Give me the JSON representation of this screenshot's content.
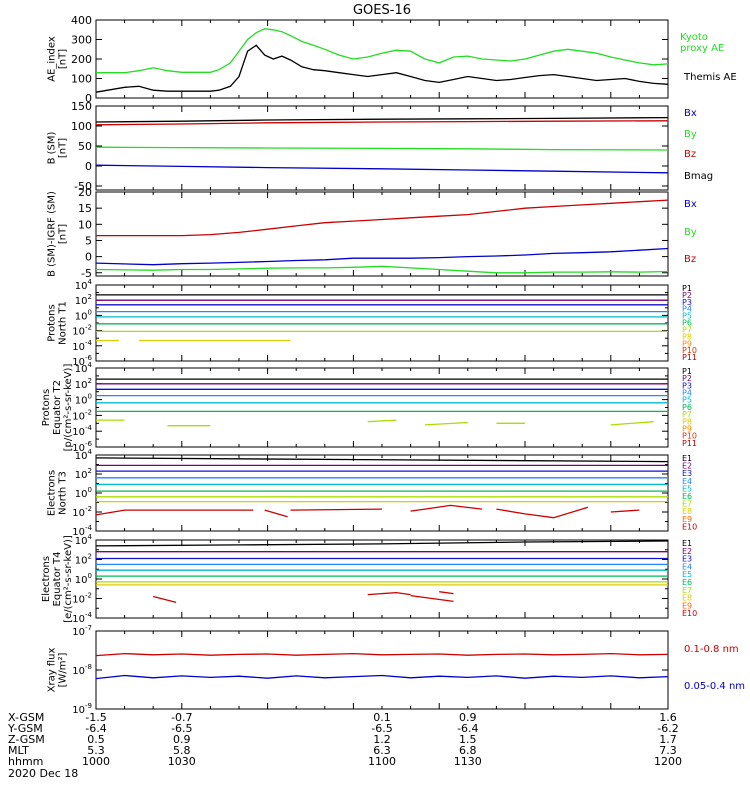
{
  "title": "GOES-16",
  "colors": {
    "black": "#000000",
    "green": "#22dd22",
    "red": "#cc0000",
    "blue": "#0000cc",
    "p1": "#000000",
    "p2": "#7a007a",
    "p3": "#1010cc",
    "p4": "#2288ff",
    "p5": "#00bbcc",
    "p6": "#00bb55",
    "p7": "#aadd00",
    "p8": "#ddcc00",
    "p9": "#ff8800",
    "p10": "#dd3300",
    "p11": "#bb0000",
    "e1": "#000000",
    "e2": "#7a007a",
    "e3": "#1010cc",
    "e4": "#2288ff",
    "e5": "#00bbcc",
    "e6": "#00bb55",
    "e7": "#aadd00",
    "e8": "#ddcc00",
    "e9": "#ff6600",
    "e10": "#cc0000"
  },
  "chart_data": [
    {
      "type": "line",
      "ylabel": [
        "AE_index",
        "[nT]"
      ],
      "ylim": [
        0,
        400
      ],
      "yticks": [
        0,
        100,
        200,
        300,
        400
      ],
      "yscale": "linear",
      "x": [
        1000,
        1010,
        1015,
        1020,
        1025,
        1030,
        1038,
        1040,
        1043,
        1047,
        1050,
        1053,
        1056,
        1059,
        1062,
        1065,
        1068,
        1072,
        1076,
        1080,
        1085,
        1090,
        1095,
        1100,
        1105,
        1110,
        1115,
        1120,
        1125,
        1130,
        1135,
        1140,
        1145,
        1150,
        1155,
        1160,
        1165,
        1170,
        1175,
        1180,
        1185,
        1190,
        1195,
        1200
      ],
      "series": [
        {
          "name": "Kyoto proxy AE",
          "color": "green",
          "values": [
            130,
            130,
            140,
            155,
            140,
            132,
            132,
            132,
            145,
            180,
            240,
            300,
            335,
            355,
            350,
            340,
            320,
            290,
            270,
            250,
            220,
            200,
            210,
            230,
            245,
            240,
            200,
            180,
            210,
            215,
            200,
            195,
            190,
            200,
            220,
            240,
            250,
            240,
            230,
            210,
            195,
            180,
            170,
            175
          ]
        },
        {
          "name": "Themis AE",
          "color": "black",
          "values": [
            30,
            55,
            60,
            40,
            35,
            35,
            35,
            35,
            40,
            60,
            110,
            240,
            270,
            220,
            200,
            215,
            195,
            160,
            145,
            140,
            130,
            120,
            110,
            120,
            130,
            110,
            90,
            80,
            95,
            110,
            100,
            90,
            95,
            105,
            115,
            120,
            110,
            100,
            90,
            95,
            100,
            85,
            75,
            70
          ]
        }
      ]
    },
    {
      "type": "line",
      "ylabel": [
        "B (SM)",
        "[nT]"
      ],
      "ylim": [
        -60,
        150
      ],
      "yticks": [
        -50,
        0,
        50,
        100,
        150
      ],
      "yscale": "linear",
      "x": [
        1000,
        1030,
        1060,
        1100,
        1130,
        1160,
        1200
      ],
      "series": [
        {
          "name": "Bmag",
          "color": "black",
          "values": [
            110,
            112,
            115,
            117,
            118,
            119,
            121
          ]
        },
        {
          "name": "Bz",
          "color": "red",
          "values": [
            103,
            105,
            108,
            110,
            111,
            112,
            113
          ]
        },
        {
          "name": "By",
          "color": "green",
          "values": [
            47,
            46,
            45,
            44,
            43,
            41,
            40
          ]
        },
        {
          "name": "Bx",
          "color": "blue",
          "values": [
            2,
            -1,
            -4,
            -7,
            -10,
            -13,
            -17
          ]
        }
      ]
    },
    {
      "type": "line",
      "ylabel": [
        "B (SM)-IGRF (SM)",
        "[nT]"
      ],
      "ylim": [
        -6,
        20
      ],
      "yticks": [
        -5,
        0,
        5,
        10,
        15,
        20
      ],
      "yscale": "linear",
      "x": [
        1000,
        1020,
        1030,
        1040,
        1050,
        1060,
        1070,
        1080,
        1090,
        1100,
        1110,
        1120,
        1130,
        1140,
        1150,
        1160,
        1170,
        1180,
        1190,
        1200
      ],
      "series": [
        {
          "name": "Bz",
          "color": "red",
          "values": [
            6.5,
            6.5,
            6.5,
            6.8,
            7.5,
            8.5,
            9.5,
            10.5,
            11.0,
            11.5,
            12.0,
            12.5,
            13.0,
            14.0,
            15.0,
            15.5,
            16.0,
            16.5,
            17.0,
            17.5
          ]
        },
        {
          "name": "Bx",
          "color": "blue",
          "values": [
            -2.0,
            -2.5,
            -2.2,
            -2.0,
            -1.8,
            -1.5,
            -1.2,
            -1.0,
            -0.5,
            -0.5,
            -0.5,
            -0.3,
            0.0,
            0.2,
            0.5,
            1.0,
            1.2,
            1.5,
            2.0,
            2.5
          ]
        },
        {
          "name": "By",
          "color": "green",
          "values": [
            -4.0,
            -4.2,
            -4.0,
            -4.0,
            -3.8,
            -3.6,
            -3.5,
            -3.5,
            -3.3,
            -3.0,
            -3.5,
            -4.0,
            -4.5,
            -5.0,
            -5.0,
            -4.8,
            -4.8,
            -4.7,
            -4.8,
            -4.6
          ]
        }
      ]
    },
    {
      "type": "line",
      "ylabel": [
        "Protons",
        "North T1"
      ],
      "ylim": [
        -6,
        4
      ],
      "yscale": "log10",
      "ytick_exponents": [
        -6,
        -4,
        -2,
        0,
        2,
        4
      ],
      "legend": [
        "P1",
        "P2",
        "P3",
        "P4",
        "P5",
        "P6",
        "P7",
        "P8",
        "P9",
        "P10",
        "P11"
      ],
      "x": [
        1000,
        1200
      ],
      "series": [
        {
          "name": "P1",
          "color": "p1",
          "values": [
            2.7,
            2.7
          ]
        },
        {
          "name": "P2",
          "color": "p2",
          "values": [
            2.0,
            2.0
          ]
        },
        {
          "name": "P3",
          "color": "p3",
          "values": [
            1.4,
            1.4
          ]
        },
        {
          "name": "P4",
          "color": "p4",
          "values": [
            0.5,
            0.5
          ]
        },
        {
          "name": "P5",
          "color": "p5",
          "values": [
            -0.2,
            -0.2
          ]
        },
        {
          "name": "P6",
          "color": "p6",
          "values": [
            -1.1,
            -1.1
          ]
        },
        {
          "name": "P7",
          "color": "p7",
          "values": [
            -2.1,
            -2.1
          ]
        }
      ],
      "segments": [
        {
          "color": "p8",
          "x": [
            1000,
            1008
          ],
          "values": [
            -3.3,
            -3.3
          ]
        },
        {
          "color": "p8",
          "x": [
            1015,
            1068
          ],
          "values": [
            -3.3,
            -3.3
          ]
        }
      ]
    },
    {
      "type": "line",
      "ylabel": [
        "Protons",
        "Equator T2",
        "[p/(cm²-s-sr-keV)]"
      ],
      "ylim": [
        -6,
        4
      ],
      "yscale": "log10",
      "ytick_exponents": [
        -6,
        -4,
        -2,
        0,
        2,
        4
      ],
      "legend": [
        "P1",
        "P2",
        "P3",
        "P4",
        "P5",
        "P6",
        "P7",
        "P8",
        "P9",
        "P10",
        "P11"
      ],
      "x": [
        1000,
        1200
      ],
      "series": [
        {
          "name": "P1",
          "color": "p1",
          "values": [
            2.6,
            2.6
          ]
        },
        {
          "name": "P2",
          "color": "p2",
          "values": [
            2.0,
            2.0
          ]
        },
        {
          "name": "P3",
          "color": "p3",
          "values": [
            1.3,
            1.3
          ]
        },
        {
          "name": "P4",
          "color": "p4",
          "values": [
            0.5,
            0.5
          ]
        },
        {
          "name": "P5",
          "color": "p5",
          "values": [
            -0.4,
            -0.4
          ]
        },
        {
          "name": "P6",
          "color": "p6",
          "values": [
            -1.5,
            -1.5
          ]
        }
      ],
      "segments": [
        {
          "color": "p7",
          "x": [
            1000,
            1010
          ],
          "values": [
            -2.6,
            -2.6
          ]
        },
        {
          "color": "p7",
          "x": [
            1025,
            1040
          ],
          "values": [
            -3.3,
            -3.3
          ]
        },
        {
          "color": "p7",
          "x": [
            1095,
            1105
          ],
          "values": [
            -2.8,
            -2.6
          ]
        },
        {
          "color": "p7",
          "x": [
            1115,
            1130
          ],
          "values": [
            -3.2,
            -2.9
          ]
        },
        {
          "color": "p7",
          "x": [
            1140,
            1150
          ],
          "values": [
            -3.0,
            -3.0
          ]
        },
        {
          "color": "p7",
          "x": [
            1180,
            1195
          ],
          "values": [
            -3.2,
            -2.8
          ]
        }
      ]
    },
    {
      "type": "line",
      "ylabel": [
        "Electrons",
        "North T3"
      ],
      "ylim": [
        -4,
        4
      ],
      "yscale": "log10",
      "ytick_exponents": [
        -4,
        -2,
        0,
        2,
        4
      ],
      "legend": [
        "E1",
        "E2",
        "E3",
        "E4",
        "E5",
        "E6",
        "E7",
        "E8",
        "E9",
        "E10"
      ],
      "x": [
        1000,
        1200
      ],
      "series": [
        {
          "name": "E1",
          "color": "e1",
          "values": [
            3.7,
            3.3
          ]
        },
        {
          "name": "E2",
          "color": "e2",
          "values": [
            2.9,
            2.9
          ]
        },
        {
          "name": "E3",
          "color": "e3",
          "values": [
            2.3,
            2.3
          ]
        },
        {
          "name": "E4",
          "color": "e4",
          "values": [
            1.6,
            1.6
          ]
        },
        {
          "name": "E5",
          "color": "e5",
          "values": [
            0.9,
            0.9
          ]
        },
        {
          "name": "E6",
          "color": "e6",
          "values": [
            0.2,
            0.2
          ]
        },
        {
          "name": "E7",
          "color": "e7",
          "values": [
            -0.4,
            -0.4
          ]
        },
        {
          "name": "E8",
          "color": "e8",
          "values": [
            -0.9,
            -0.9
          ]
        }
      ],
      "segments": [
        {
          "color": "e10",
          "x": [
            1000,
            1010,
            1030,
            1055
          ],
          "values": [
            -2.3,
            -1.8,
            -1.8,
            -1.8
          ]
        },
        {
          "color": "e10",
          "x": [
            1059,
            1067
          ],
          "values": [
            -1.8,
            -2.5
          ]
        },
        {
          "color": "e10",
          "x": [
            1068,
            1100
          ],
          "values": [
            -1.8,
            -1.7
          ]
        },
        {
          "color": "e10",
          "x": [
            1110,
            1115,
            1124,
            1135
          ],
          "values": [
            -1.9,
            -1.7,
            -1.3,
            -1.7
          ]
        },
        {
          "color": "e10",
          "x": [
            1140,
            1150,
            1160,
            1172
          ],
          "values": [
            -1.7,
            -2.2,
            -2.6,
            -1.5
          ]
        },
        {
          "color": "e10",
          "x": [
            1180,
            1190
          ],
          "values": [
            -2.0,
            -1.8
          ]
        }
      ]
    },
    {
      "type": "line",
      "ylabel": [
        "Electrons",
        "Equator T4",
        "[e/(cm²-s-sr-keV)]"
      ],
      "ylim": [
        -4,
        4
      ],
      "yscale": "log10",
      "ytick_exponents": [
        -4,
        -2,
        0,
        2,
        4
      ],
      "legend": [
        "E1",
        "E2",
        "E3",
        "E4",
        "E5",
        "E6",
        "E7",
        "E8",
        "E9",
        "E10"
      ],
      "x": [
        1000,
        1050,
        1100,
        1150,
        1200
      ],
      "series": [
        {
          "name": "E1",
          "color": "e1",
          "values": [
            3.4,
            3.5,
            3.6,
            3.8,
            3.9
          ]
        },
        {
          "name": "E2",
          "color": "e2",
          "values": [
            2.8,
            2.8,
            2.8,
            2.8,
            2.8
          ]
        },
        {
          "name": "E3",
          "color": "e3",
          "values": [
            2.1,
            2.1,
            2.1,
            2.1,
            2.1
          ]
        },
        {
          "name": "E4",
          "color": "e4",
          "values": [
            1.5,
            1.5,
            1.5,
            1.5,
            1.5
          ]
        },
        {
          "name": "E5",
          "color": "e5",
          "values": [
            0.9,
            0.9,
            0.9,
            0.9,
            0.9
          ]
        },
        {
          "name": "E6",
          "color": "e6",
          "values": [
            0.3,
            0.3,
            0.3,
            0.3,
            0.3
          ]
        },
        {
          "name": "E7",
          "color": "e7",
          "values": [
            -0.3,
            -0.3,
            -0.3,
            -0.3,
            -0.3
          ]
        },
        {
          "name": "E8",
          "color": "e8",
          "values": [
            -0.6,
            -0.6,
            -0.6,
            -0.6,
            -0.6
          ]
        }
      ],
      "segments": [
        {
          "color": "e10",
          "x": [
            1020,
            1028
          ],
          "values": [
            -1.8,
            -2.4
          ]
        },
        {
          "color": "e10",
          "x": [
            1095,
            1105,
            1110
          ],
          "values": [
            -1.6,
            -1.4,
            -1.6
          ]
        },
        {
          "color": "e10",
          "x": [
            1110,
            1125
          ],
          "values": [
            -1.7,
            -2.3
          ]
        },
        {
          "color": "e10",
          "x": [
            1120,
            1125
          ],
          "values": [
            -1.3,
            -1.5
          ]
        }
      ]
    },
    {
      "type": "line",
      "ylabel": [
        "Xray flux",
        "[W/m²]"
      ],
      "ylim": [
        -9,
        -7
      ],
      "yscale": "log10",
      "ytick_exponents": [
        -9,
        -8,
        -7
      ],
      "x": [
        1000,
        1010,
        1020,
        1030,
        1040,
        1050,
        1060,
        1070,
        1080,
        1090,
        1100,
        1110,
        1120,
        1130,
        1140,
        1150,
        1160,
        1170,
        1180,
        1190,
        1200
      ],
      "series": [
        {
          "name": "0.1-0.8 nm",
          "color": "red",
          "values": [
            -7.63,
            -7.58,
            -7.61,
            -7.59,
            -7.62,
            -7.6,
            -7.59,
            -7.62,
            -7.6,
            -7.58,
            -7.61,
            -7.6,
            -7.59,
            -7.62,
            -7.6,
            -7.59,
            -7.61,
            -7.6,
            -7.58,
            -7.61,
            -7.6
          ]
        },
        {
          "name": "0.05-0.4 nm",
          "color": "blue",
          "values": [
            -8.22,
            -8.14,
            -8.2,
            -8.15,
            -8.19,
            -8.16,
            -8.21,
            -8.15,
            -8.2,
            -8.17,
            -8.14,
            -8.2,
            -8.16,
            -8.19,
            -8.15,
            -8.21,
            -8.16,
            -8.19,
            -8.15,
            -8.2,
            -8.17
          ]
        }
      ]
    }
  ],
  "ephemeris": [
    {
      "label": "X-GSM",
      "values": [
        "-1.5",
        "-0.7",
        "0.1",
        "0.9",
        "1.6"
      ]
    },
    {
      "label": "Y-GSM",
      "values": [
        "-6.4",
        "-6.5",
        "-6.5",
        "-6.4",
        "-6.2"
      ]
    },
    {
      "label": "Z-GSM",
      "values": [
        "0.5",
        "0.9",
        "1.2",
        "1.5",
        "1.7"
      ]
    },
    {
      "label": "MLT",
      "values": [
        "5.3",
        "5.8",
        "6.3",
        "6.8",
        "7.3"
      ]
    },
    {
      "label": "hhmm",
      "values": [
        "1000",
        "1030",
        "1100",
        "1130",
        "1200"
      ]
    }
  ],
  "date_label": "2020 Dec 18"
}
